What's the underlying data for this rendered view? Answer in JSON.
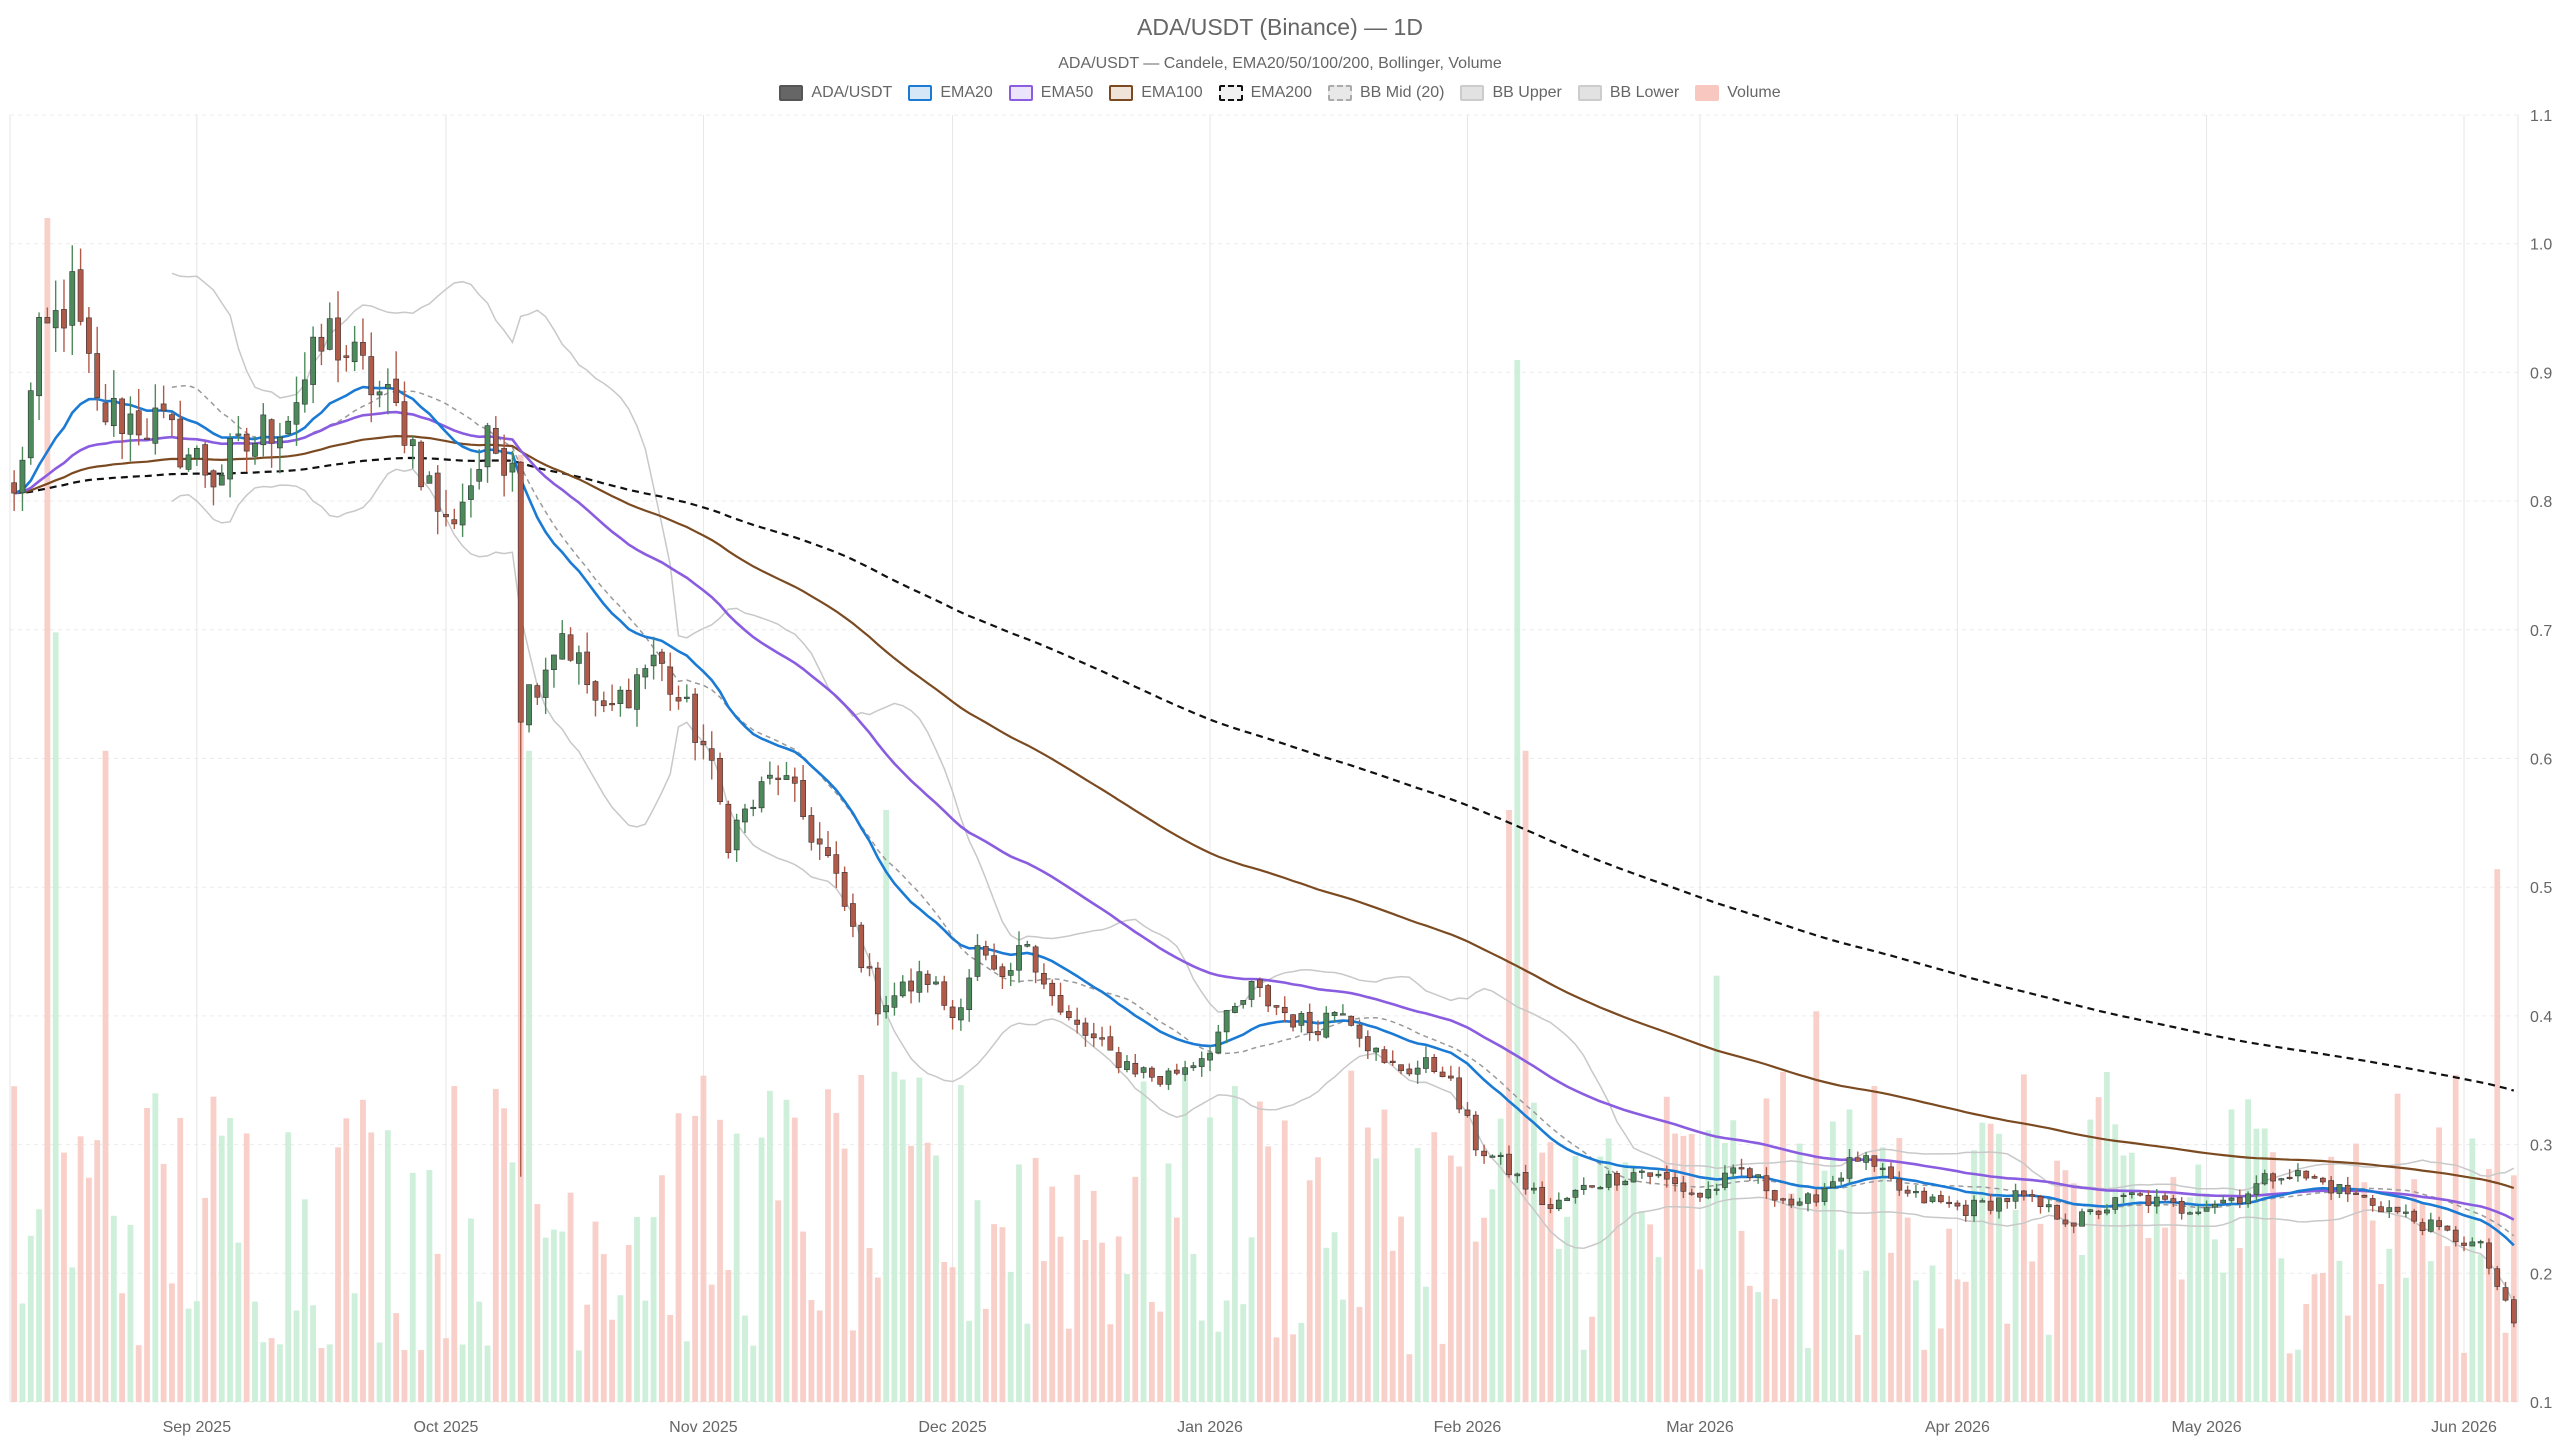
{
  "chart_data": {
    "type": "candlestick",
    "title": "ADA/USDT (Binance) — 1D",
    "subtitle": "ADA/USDT — Candele, EMA20/50/100/200, Bollinger, Volume",
    "legend": [
      {
        "label": "ADA/USDT",
        "fill": "#666666",
        "stroke": "#555555",
        "dashed": false
      },
      {
        "label": "EMA20",
        "fill": "#d6e8f8",
        "stroke": "#1a7ad4",
        "dashed": false
      },
      {
        "label": "EMA50",
        "fill": "#ece4fb",
        "stroke": "#8a5ce0",
        "dashed": false
      },
      {
        "label": "EMA100",
        "fill": "#f0e4d8",
        "stroke": "#7b4a21",
        "dashed": false
      },
      {
        "label": "EMA200",
        "fill": "#f0f0f0",
        "stroke": "#111111",
        "dashed": true
      },
      {
        "label": "BB Mid (20)",
        "fill": "#e8e8e8",
        "stroke": "#aaaaaa",
        "dashed": true
      },
      {
        "label": "BB Upper",
        "fill": "#e2e2e2",
        "stroke": "#cccccc",
        "dashed": false
      },
      {
        "label": "BB Lower",
        "fill": "#e2e2e2",
        "stroke": "#cccccc",
        "dashed": false
      },
      {
        "label": "Volume",
        "fill": "#f8c8c0",
        "stroke": "#f8c8c0",
        "dashed": false
      }
    ],
    "x_range": [
      "2025-08-10",
      "2026-06-07"
    ],
    "x_ticks": [
      {
        "date": "2025-09-01",
        "label": "Sep 2025"
      },
      {
        "date": "2025-10-01",
        "label": "Oct 2025"
      },
      {
        "date": "2025-11-01",
        "label": "Nov 2025"
      },
      {
        "date": "2025-12-01",
        "label": "Dec 2025"
      },
      {
        "date": "2026-01-01",
        "label": "Jan 2026"
      },
      {
        "date": "2026-02-01",
        "label": "Feb 2026"
      },
      {
        "date": "2026-03-01",
        "label": "Mar 2026"
      },
      {
        "date": "2026-04-01",
        "label": "Apr 2026"
      },
      {
        "date": "2026-05-01",
        "label": "May 2026"
      },
      {
        "date": "2026-06-01",
        "label": "Jun 2026"
      }
    ],
    "y_ticks": [
      0.1,
      0.2,
      0.3,
      0.4,
      0.5,
      0.6,
      0.7,
      0.8,
      0.9,
      1.0,
      1.1
    ],
    "y_tick_labels": [
      "0.1",
      "0.2",
      "0.3",
      "0.4",
      "0.5",
      "0.6",
      "0.7",
      "0.8",
      "0.9",
      "1.0",
      "1.1"
    ],
    "ylim": [
      0.1,
      1.1
    ],
    "grid": true,
    "legend_position": "top-center",
    "colors": {
      "up": "#4c8a5c",
      "down": "#b05a4a",
      "vol_up": "#c6ecd4",
      "vol_down": "#f8c8c0"
    },
    "price_anchors": [
      [
        "2025-08-10",
        0.8
      ],
      [
        "2025-08-13",
        0.92
      ],
      [
        "2025-08-17",
        0.96
      ],
      [
        "2025-08-20",
        0.87
      ],
      [
        "2025-08-27",
        0.86
      ],
      [
        "2025-09-03",
        0.82
      ],
      [
        "2025-09-12",
        0.87
      ],
      [
        "2025-09-17",
        0.93
      ],
      [
        "2025-09-26",
        0.86
      ],
      [
        "2025-10-01",
        0.78
      ],
      [
        "2025-10-06",
        0.84
      ],
      [
        "2025-10-09",
        0.84
      ],
      [
        "2025-10-10",
        0.64
      ],
      [
        "2025-10-15",
        0.7
      ],
      [
        "2025-10-20",
        0.63
      ],
      [
        "2025-10-26",
        0.68
      ],
      [
        "2025-11-01",
        0.61
      ],
      [
        "2025-11-04",
        0.54
      ],
      [
        "2025-11-10",
        0.59
      ],
      [
        "2025-11-16",
        0.52
      ],
      [
        "2025-11-22",
        0.41
      ],
      [
        "2025-11-28",
        0.43
      ],
      [
        "2025-12-01",
        0.4
      ],
      [
        "2025-12-04",
        0.45
      ],
      [
        "2025-12-07",
        0.42
      ],
      [
        "2025-12-10",
        0.46
      ],
      [
        "2025-12-14",
        0.4
      ],
      [
        "2025-12-20",
        0.37
      ],
      [
        "2025-12-26",
        0.35
      ],
      [
        "2025-12-31",
        0.37
      ],
      [
        "2026-01-06",
        0.42
      ],
      [
        "2026-01-13",
        0.39
      ],
      [
        "2026-01-17",
        0.41
      ],
      [
        "2026-01-22",
        0.36
      ],
      [
        "2026-01-29",
        0.36
      ],
      [
        "2026-02-02",
        0.3
      ],
      [
        "2026-02-06",
        0.28
      ],
      [
        "2026-02-11",
        0.25
      ],
      [
        "2026-02-16",
        0.27
      ],
      [
        "2026-02-22",
        0.28
      ],
      [
        "2026-03-01",
        0.26
      ],
      [
        "2026-03-06",
        0.28
      ],
      [
        "2026-03-13",
        0.25
      ],
      [
        "2026-03-20",
        0.29
      ],
      [
        "2026-03-26",
        0.26
      ],
      [
        "2026-04-02",
        0.25
      ],
      [
        "2026-04-08",
        0.26
      ],
      [
        "2026-04-15",
        0.24
      ],
      [
        "2026-04-22",
        0.26
      ],
      [
        "2026-04-28",
        0.25
      ],
      [
        "2026-05-05",
        0.26
      ],
      [
        "2026-05-10",
        0.28
      ],
      [
        "2026-05-15",
        0.27
      ],
      [
        "2026-05-23",
        0.25
      ],
      [
        "2026-05-30",
        0.23
      ],
      [
        "2026-06-03",
        0.22
      ],
      [
        "2026-06-07",
        0.16
      ]
    ],
    "volume_spikes": [
      [
        "2025-08-14",
        1.0
      ],
      [
        "2025-08-15",
        0.65
      ],
      [
        "2025-08-21",
        0.55
      ],
      [
        "2025-10-10",
        0.8
      ],
      [
        "2025-10-11",
        0.55
      ],
      [
        "2025-11-23",
        0.5
      ],
      [
        "2026-02-06",
        0.5
      ],
      [
        "2026-02-07",
        0.88
      ],
      [
        "2026-02-08",
        0.55
      ],
      [
        "2026-03-03",
        0.36
      ],
      [
        "2026-03-15",
        0.33
      ],
      [
        "2026-06-05",
        0.45
      ]
    ]
  }
}
